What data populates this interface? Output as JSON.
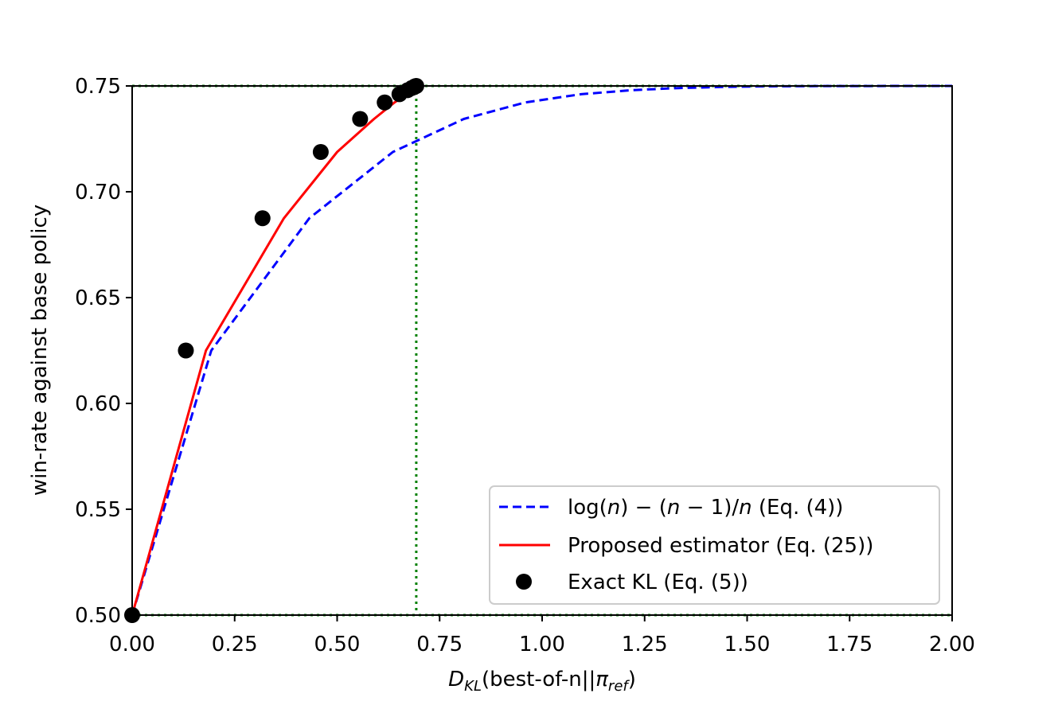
{
  "chart_data": {
    "type": "line",
    "xlabel": {
      "main": "D",
      "sub": "KL",
      "mid": "(best-of-n||",
      "pi": "π",
      "pisub": "ref",
      "end": ")"
    },
    "ylabel": "win-rate against base policy",
    "xlim": [
      0,
      2
    ],
    "ylim": [
      0.5,
      0.75
    ],
    "xticks": [
      "0.00",
      "0.25",
      "0.50",
      "0.75",
      "1.00",
      "1.25",
      "1.50",
      "1.75",
      "2.00"
    ],
    "yticks": [
      "0.50",
      "0.55",
      "0.60",
      "0.65",
      "0.70",
      "0.75"
    ],
    "grid": false,
    "legend_position": "lower-right",
    "reference_lines": {
      "horizontal": [
        0.5,
        0.75
      ],
      "vertical": [
        0.693
      ],
      "color": "#008000",
      "style": "dotted"
    },
    "series": [
      {
        "name": "log(n) − (n − 1)/n (Eq. (4))",
        "legend_parts": {
          "a": "log(",
          "n1": "n",
          "b": ") − (",
          "n2": "n",
          "c": " − 1)/",
          "n3": "n",
          "d": " (Eq. (4))"
        },
        "style": "dashed",
        "color": "#0000ff",
        "x": [
          0,
          0.193,
          0.432,
          0.636,
          0.809,
          0.959,
          1.095,
          1.218,
          1.331,
          1.436,
          1.533,
          1.624,
          1.71,
          1.79,
          1.866,
          1.938,
          2.0
        ],
        "y": [
          0.5,
          0.625,
          0.6875,
          0.7188,
          0.7344,
          0.7422,
          0.7461,
          0.748,
          0.749,
          0.7495,
          0.7498,
          0.7499,
          0.74995,
          0.74997,
          0.74999,
          0.75,
          0.75
        ]
      },
      {
        "name": "Proposed estimator (Eq. (25))",
        "style": "solid",
        "color": "#ff0000",
        "x": [
          0,
          0.18,
          0.37,
          0.5,
          0.59,
          0.64,
          0.67,
          0.68,
          0.69
        ],
        "y": [
          0.5,
          0.625,
          0.6875,
          0.7188,
          0.7344,
          0.7422,
          0.7461,
          0.748,
          0.75
        ]
      },
      {
        "name": "Exact KL (Eq. (5))",
        "style": "markers",
        "color": "#000000",
        "x": [
          0,
          0.131,
          0.318,
          0.46,
          0.556,
          0.616,
          0.652,
          0.672,
          0.682,
          0.688,
          0.69,
          0.692,
          0.693
        ],
        "y": [
          0.5,
          0.625,
          0.6875,
          0.7188,
          0.7344,
          0.7422,
          0.7461,
          0.748,
          0.749,
          0.7495,
          0.7498,
          0.7499,
          0.75
        ]
      }
    ]
  }
}
